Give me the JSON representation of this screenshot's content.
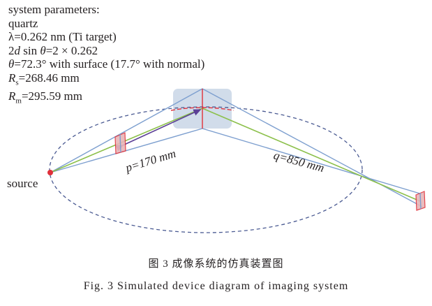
{
  "parameters": {
    "heading": "system parameters:",
    "crystal": "quartz",
    "wavelength": "λ=0.262 nm (Ti target)",
    "bragg_prefix": "2",
    "bragg_d": "d",
    "bragg_mid": " sin ",
    "bragg_theta": "θ",
    "bragg_rest": "=2 × 0.262",
    "angle_theta": "θ",
    "angle_rest": "=72.3°  with surface (17.7°  with normal)",
    "rs_R": "R",
    "rs_sub": "s",
    "rs_val": "=268.46 mm",
    "rm_R": "R",
    "rm_sub": "m",
    "rm_val": "=295.59 mm"
  },
  "labels": {
    "source": "source",
    "p": "p=170 mm",
    "q": "q=850 mm"
  },
  "colors": {
    "ray_blue": "#7d9fcf",
    "ray_green": "#8cc04b",
    "arrow_purple": "#5b3f96",
    "crystal_red": "#e0303a",
    "crystal_box": "#c9d6e6",
    "ellipse": "#4a5a92"
  },
  "caption": {
    "cn": "图 3  成像系统的仿真装置图",
    "en": "Fig. 3  Simulated device diagram of imaging system"
  }
}
